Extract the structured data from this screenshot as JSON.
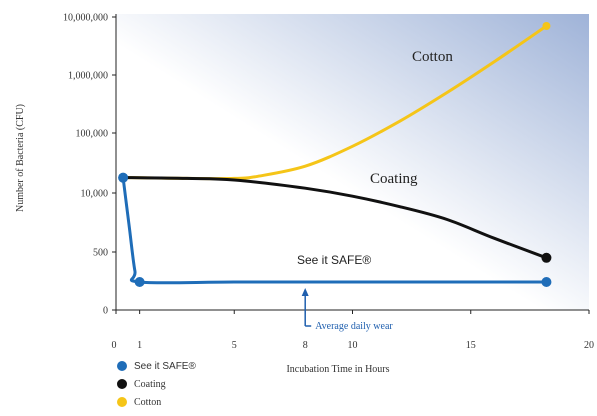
{
  "chart_data": {
    "type": "line",
    "xlabel": "Incubation Time in Hours",
    "ylabel": "Number of Bacteria (CFU)",
    "x_ticks": [
      "0",
      "1",
      "5",
      "8",
      "10",
      "15",
      "20"
    ],
    "y_ticks": [
      "0",
      "500",
      "10,000",
      "100,000",
      "1,000,000",
      "10,000,000"
    ],
    "xlim": [
      0,
      20
    ],
    "grid": false,
    "series": [
      {
        "name": "Cotton",
        "color": "#f5c518",
        "points": [
          [
            0.3,
            18000
          ],
          [
            1,
            18000
          ],
          [
            3,
            17500
          ],
          [
            5,
            17500
          ],
          [
            6,
            19000
          ],
          [
            8,
            28000
          ],
          [
            10,
            60000
          ],
          [
            12,
            160000
          ],
          [
            14,
            500000
          ],
          [
            16,
            1700000
          ],
          [
            18.2,
            7000000
          ]
        ]
      },
      {
        "name": "Coating",
        "color": "#111111",
        "points": [
          [
            0.3,
            18000
          ],
          [
            1,
            18000
          ],
          [
            3,
            17500
          ],
          [
            5,
            16500
          ],
          [
            8,
            12000
          ],
          [
            10,
            8500
          ],
          [
            12,
            5000
          ],
          [
            14,
            2600
          ],
          [
            16,
            1000
          ],
          [
            18.2,
            150
          ]
        ]
      },
      {
        "name": "See it SAFE®",
        "color": "#1f6db8",
        "points": [
          [
            0.3,
            18000
          ],
          [
            0.55,
            2000
          ],
          [
            0.8,
            10
          ],
          [
            1,
            0
          ],
          [
            5,
            0
          ],
          [
            10,
            0
          ],
          [
            15,
            0
          ],
          [
            18.2,
            0
          ]
        ]
      }
    ],
    "labels": {
      "cotton": "Cotton",
      "coating": "Coating",
      "safe": "See it SAFE®"
    },
    "legend": {
      "position": "bottom-left",
      "entries": [
        {
          "name": "See it SAFE®",
          "color": "#1f6db8"
        },
        {
          "name": "Coating",
          "color": "#111111"
        },
        {
          "name": "Cotton",
          "color": "#f5c518"
        }
      ]
    },
    "annotation": {
      "text": "Average daily wear",
      "x": 8,
      "color": "#1f5fae"
    }
  }
}
